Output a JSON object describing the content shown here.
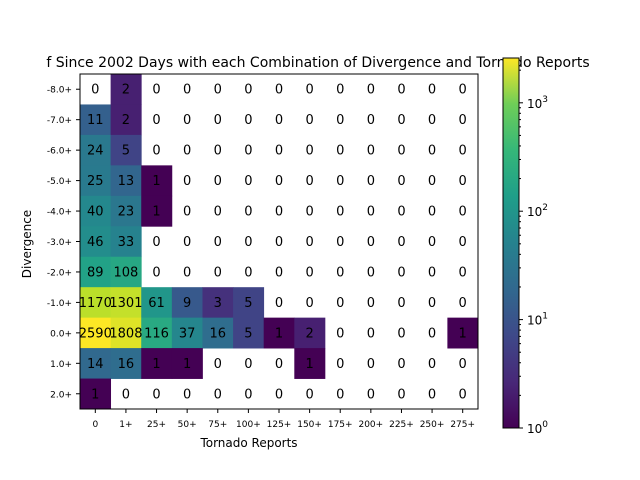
{
  "chart_data": {
    "type": "heatmap",
    "title": "f Since 2002 Days with each Combination of Divergence and Tornado Reports",
    "xlabel": "Tornado Reports",
    "ylabel": "Divergence",
    "x_categories": [
      "0",
      "1+",
      "25+",
      "50+",
      "75+",
      "100+",
      "125+",
      "150+",
      "175+",
      "200+",
      "225+",
      "250+",
      "275+"
    ],
    "y_categories": [
      "-8.0+",
      "-7.0+",
      "-6.0+",
      "-5.0+",
      "-4.0+",
      "-3.0+",
      "-2.0+",
      "-1.0+",
      "0.0+",
      "1.0+",
      "2.0+"
    ],
    "values": [
      [
        0,
        2,
        0,
        0,
        0,
        0,
        0,
        0,
        0,
        0,
        0,
        0,
        0
      ],
      [
        11,
        2,
        0,
        0,
        0,
        0,
        0,
        0,
        0,
        0,
        0,
        0,
        0
      ],
      [
        24,
        5,
        0,
        0,
        0,
        0,
        0,
        0,
        0,
        0,
        0,
        0,
        0
      ],
      [
        25,
        13,
        1,
        0,
        0,
        0,
        0,
        0,
        0,
        0,
        0,
        0,
        0
      ],
      [
        40,
        23,
        1,
        0,
        0,
        0,
        0,
        0,
        0,
        0,
        0,
        0,
        0
      ],
      [
        46,
        33,
        0,
        0,
        0,
        0,
        0,
        0,
        0,
        0,
        0,
        0,
        0
      ],
      [
        89,
        108,
        0,
        0,
        0,
        0,
        0,
        0,
        0,
        0,
        0,
        0,
        0
      ],
      [
        1170,
        1301,
        61,
        9,
        3,
        5,
        0,
        0,
        0,
        0,
        0,
        0,
        0
      ],
      [
        2590,
        1808,
        116,
        37,
        16,
        5,
        1,
        2,
        0,
        0,
        0,
        0,
        1
      ],
      [
        14,
        16,
        1,
        1,
        0,
        0,
        0,
        1,
        0,
        0,
        0,
        0,
        0
      ],
      [
        1,
        0,
        0,
        0,
        0,
        0,
        0,
        0,
        0,
        0,
        0,
        0,
        0
      ]
    ],
    "colorbar": {
      "scale": "log",
      "range": [
        1,
        2590
      ],
      "tick_labels": [
        "10^0",
        "10^1",
        "10^2",
        "10^3"
      ],
      "colormap": "viridis"
    },
    "grid": false
  }
}
